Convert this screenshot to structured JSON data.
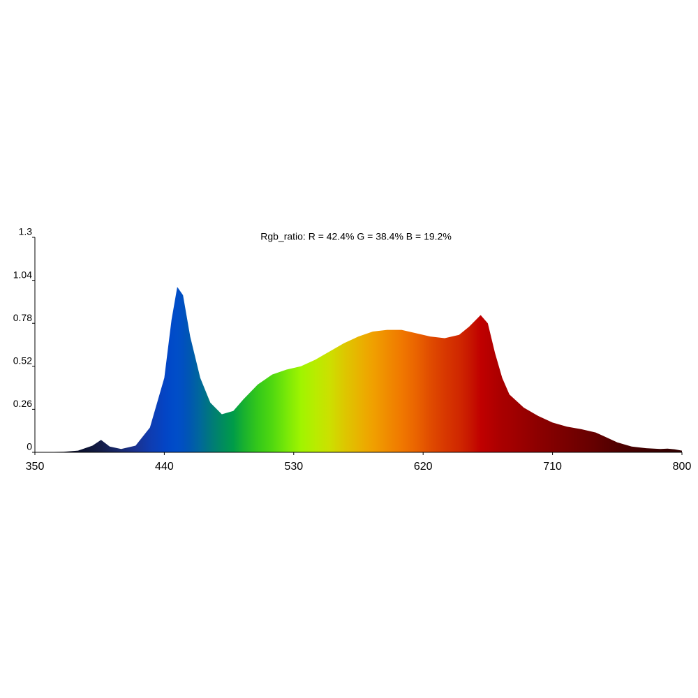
{
  "chart_data": {
    "type": "area",
    "title": "Rgb_ratio: R = 42.4% G = 38.4% B = 19.2%",
    "x": [
      350,
      370,
      380,
      390,
      396,
      402,
      410,
      420,
      430,
      440,
      445,
      449,
      453,
      458,
      465,
      472,
      480,
      488,
      495,
      505,
      515,
      525,
      535,
      545,
      555,
      565,
      575,
      585,
      595,
      605,
      615,
      625,
      635,
      645,
      652,
      660,
      665,
      670,
      675,
      680,
      690,
      700,
      710,
      720,
      730,
      740,
      745,
      755,
      765,
      775,
      785,
      790,
      795,
      800
    ],
    "values": [
      0,
      0.003,
      0.01,
      0.04,
      0.075,
      0.035,
      0.02,
      0.04,
      0.15,
      0.45,
      0.8,
      1.0,
      0.95,
      0.7,
      0.45,
      0.3,
      0.23,
      0.25,
      0.32,
      0.41,
      0.47,
      0.5,
      0.52,
      0.56,
      0.61,
      0.66,
      0.7,
      0.73,
      0.74,
      0.74,
      0.72,
      0.7,
      0.69,
      0.71,
      0.76,
      0.83,
      0.78,
      0.6,
      0.45,
      0.35,
      0.27,
      0.22,
      0.18,
      0.155,
      0.14,
      0.12,
      0.1,
      0.06,
      0.035,
      0.025,
      0.02,
      0.022,
      0.018,
      0.01
    ],
    "colors": [
      "#05061a",
      "#070a22",
      "#0a0e2c",
      "#10183c",
      "#141c48",
      "#16225a",
      "#182a70",
      "#1a3290",
      "#0f3cb0",
      "#0444c4",
      "#004ac8",
      "#004ec8",
      "#0050c0",
      "#0058b0",
      "#00689a",
      "#00787c",
      "#008a60",
      "#009c48",
      "#18b030",
      "#34c81a",
      "#50d810",
      "#78e808",
      "#a0f400",
      "#b8ec00",
      "#cce000",
      "#dcc800",
      "#e8b400",
      "#f0a000",
      "#f08c00",
      "#f07800",
      "#ea6400",
      "#e04c00",
      "#d83800",
      "#d02800",
      "#c81800",
      "#c00000",
      "#b80000",
      "#b00000",
      "#a80000",
      "#a40000",
      "#980000",
      "#8c0000",
      "#820000",
      "#780000",
      "#6e0000",
      "#640000",
      "#5c0000",
      "#500000",
      "#460000",
      "#3e0000",
      "#380000",
      "#360000",
      "#340000",
      "#300000"
    ],
    "xlim": [
      350,
      800
    ],
    "ylim": [
      0,
      1.3
    ],
    "xticks": [
      350,
      440,
      530,
      620,
      710,
      800
    ],
    "yticks": [
      0,
      0.26,
      0.52,
      0.78,
      1.04,
      1.3
    ]
  }
}
